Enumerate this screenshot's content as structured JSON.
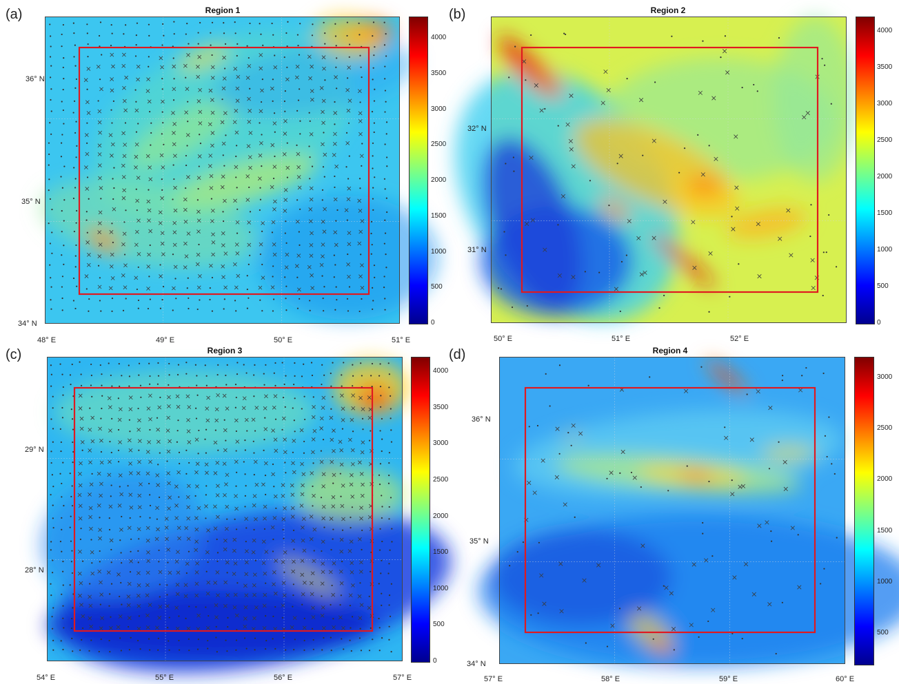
{
  "colormap": [
    "#00008f",
    "#0000ff",
    "#0080ff",
    "#00ffff",
    "#80ff80",
    "#ffff00",
    "#ff8000",
    "#ff0000",
    "#800000"
  ],
  "box_color": "#e0191f",
  "panels": [
    {
      "id": "a",
      "letter": "(a)",
      "title": "Region 1",
      "colorbar": {
        "min": 0,
        "max": 4300,
        "ticks": [
          "4000",
          "3500",
          "3000",
          "2500",
          "2000",
          "1500",
          "1000",
          "500",
          "0"
        ],
        "values": [
          4000,
          3500,
          3000,
          2500,
          2000,
          1500,
          1000,
          500,
          0
        ]
      },
      "lat_ticks": [
        "36° N",
        "35° N",
        "34° N"
      ],
      "lon_ticks": [
        "48° E",
        "49° E",
        "50° E",
        "51° E"
      ]
    },
    {
      "id": "b",
      "letter": "(b)",
      "title": "Region 2",
      "colorbar": {
        "min": 0,
        "max": 4200,
        "ticks": [
          "4000",
          "3500",
          "3000",
          "2500",
          "2000",
          "1500",
          "1000",
          "500",
          "0"
        ],
        "values": [
          4000,
          3500,
          3000,
          2500,
          2000,
          1500,
          1000,
          500,
          0
        ]
      },
      "lat_ticks": [
        "32° N",
        "31° N"
      ],
      "lon_ticks": [
        "50° E",
        "51° E",
        "52° E"
      ]
    },
    {
      "id": "c",
      "letter": "(c)",
      "title": "Region 3",
      "colorbar": {
        "min": 0,
        "max": 4200,
        "ticks": [
          "4000",
          "3500",
          "3000",
          "2500",
          "2000",
          "1500",
          "1000",
          "500",
          "0"
        ],
        "values": [
          4000,
          3500,
          3000,
          2500,
          2000,
          1500,
          1000,
          500,
          0
        ]
      },
      "lat_ticks": [
        "29° N",
        "28° N"
      ],
      "lon_ticks": [
        "54° E",
        "55° E",
        "56° E",
        "57° E"
      ]
    },
    {
      "id": "d",
      "letter": "(d)",
      "title": "Region 4",
      "colorbar": {
        "min": 200,
        "max": 3200,
        "ticks": [
          "3000",
          "2500",
          "2000",
          "1500",
          "1000",
          "500"
        ],
        "values": [
          3000,
          2500,
          2000,
          1500,
          1000,
          500
        ]
      },
      "lat_ticks": [
        "36° N",
        "35° N",
        "34° N"
      ],
      "lon_ticks": [
        "57° E",
        "58° E",
        "59° E",
        "60° E"
      ]
    }
  ]
}
